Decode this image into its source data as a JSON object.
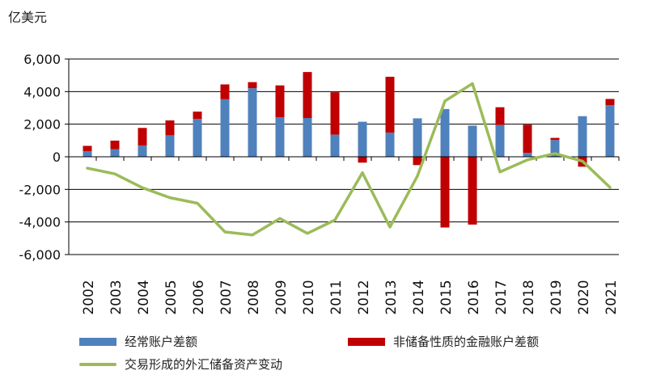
{
  "chart_data": {
    "type": "bar",
    "unit_label": "亿美元",
    "categories": [
      "2002",
      "2003",
      "2004",
      "2005",
      "2006",
      "2007",
      "2008",
      "2009",
      "2010",
      "2011",
      "2012",
      "2013",
      "2014",
      "2015",
      "2016",
      "2017",
      "2018",
      "2019",
      "2020",
      "2021"
    ],
    "ylim": [
      -6000,
      6000
    ],
    "yticks": [
      -6000,
      -4000,
      -2000,
      0,
      2000,
      4000,
      6000
    ],
    "ytick_labels": [
      "-6,000",
      "-4,000",
      "-2,000",
      "0",
      "2,000",
      "4,000",
      "6,000"
    ],
    "grid": true,
    "series": [
      {
        "name": "经常账户差额",
        "kind": "bar",
        "color": "#4F81BD",
        "values": [
          350,
          460,
          690,
          1320,
          2320,
          3530,
          4210,
          2430,
          2380,
          1360,
          2150,
          1480,
          2360,
          2930,
          1910,
          1950,
          240,
          1030,
          2490,
          3170
        ]
      },
      {
        "name": "非储备性质的金融账户差额",
        "kind": "bar",
        "color": "#C00000",
        "values": [
          320,
          530,
          1080,
          910,
          450,
          910,
          370,
          1950,
          2820,
          2600,
          -360,
          3430,
          -510,
          -4340,
          -4160,
          1090,
          1730,
          130,
          -610,
          380
        ]
      },
      {
        "name": "交易形成的外汇储备资产变动",
        "kind": "line",
        "color": "#9BBB59",
        "values": [
          -700,
          -1050,
          -1900,
          -2510,
          -2850,
          -4610,
          -4800,
          -3790,
          -4700,
          -3880,
          -980,
          -4310,
          -1180,
          3420,
          4490,
          -930,
          -190,
          200,
          -270,
          -1880
        ]
      }
    ]
  }
}
